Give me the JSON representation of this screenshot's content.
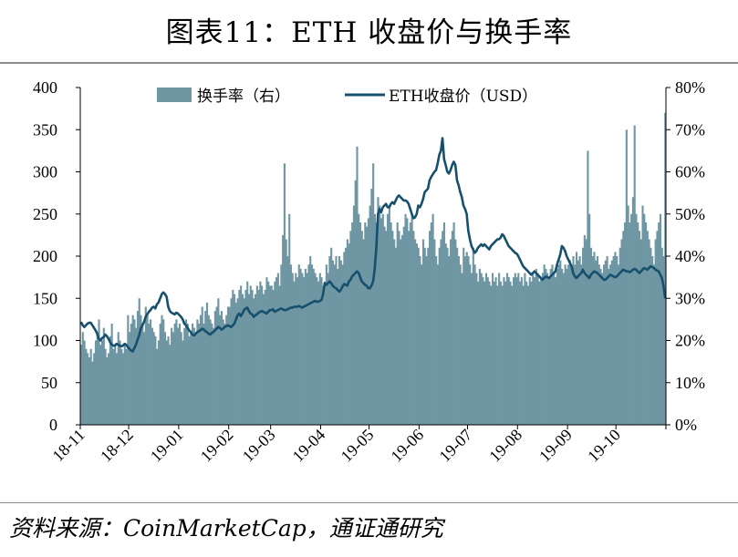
{
  "chart_data": {
    "type": "bar+line",
    "title": "图表11：ETH 收盘价与换手率",
    "source": "资料来源：CoinMarketCap，通证通研究",
    "x_categories": [
      "18-11",
      "18-12",
      "19-01",
      "19-02",
      "19-03",
      "19-04",
      "19-05",
      "19-06",
      "19-07",
      "19-08",
      "19-09",
      "19-10"
    ],
    "y_left": {
      "ticks": [
        "0",
        "50",
        "100",
        "150",
        "200",
        "250",
        "300",
        "350",
        "400"
      ],
      "range": [
        0,
        400
      ]
    },
    "y_right": {
      "ticks": [
        "0%",
        "10%",
        "20%",
        "30%",
        "40%",
        "50%",
        "60%",
        "70%",
        "80%"
      ],
      "range": [
        0,
        80
      ]
    },
    "legend_placement": "top",
    "series": [
      {
        "name": "换手率（右）",
        "type": "bar",
        "axis": "right",
        "color": "#6f96a3",
        "monthly_values": [
          [
            19,
            22,
            20,
            18,
            17,
            16,
            18,
            15,
            17,
            20,
            22,
            25,
            19,
            20,
            23,
            18,
            16,
            17,
            21,
            24,
            18,
            19,
            17,
            22,
            20,
            18,
            17,
            19,
            18,
            26
          ],
          [
            22,
            24,
            26,
            25,
            23,
            27,
            30,
            26,
            24,
            22,
            28,
            26,
            24,
            25,
            23,
            22,
            21,
            18,
            20,
            24,
            26,
            25,
            22,
            20,
            21,
            19,
            23,
            22,
            24,
            25,
            23
          ],
          [
            24,
            22,
            20,
            23,
            25,
            24,
            21,
            22,
            24,
            23,
            22,
            25,
            24,
            26,
            28,
            24,
            27,
            29,
            26,
            25,
            24,
            23,
            27,
            28,
            30,
            26,
            27,
            25,
            24,
            26,
            28
          ],
          [
            28,
            30,
            32,
            31,
            29,
            30,
            32,
            33,
            31,
            30,
            32,
            34,
            31,
            33,
            32,
            30,
            31,
            33,
            32,
            34,
            33,
            31,
            32,
            35,
            34,
            33
          ],
          [
            33,
            32,
            34,
            35,
            36,
            33,
            38,
            45,
            62,
            44,
            40,
            50,
            38,
            36,
            34,
            36,
            35,
            38,
            37,
            36,
            35,
            37,
            36,
            38,
            40,
            38,
            37,
            36,
            35,
            34,
            36
          ],
          [
            35,
            33,
            34,
            38,
            36,
            40,
            42,
            39,
            38,
            40,
            37,
            40,
            39,
            38,
            41,
            42,
            44,
            43,
            46,
            48,
            52,
            58,
            66,
            50,
            48,
            46,
            44,
            48,
            47,
            49
          ],
          [
            52,
            56,
            62,
            50,
            48,
            54,
            52,
            49,
            50,
            47,
            46,
            50,
            52,
            48,
            46,
            44,
            42,
            48,
            46,
            44,
            45,
            47,
            50,
            49,
            46,
            48,
            50,
            46,
            44,
            43,
            42
          ],
          [
            40,
            38,
            44,
            42,
            40,
            42,
            46,
            48,
            50,
            44,
            40,
            38,
            42,
            44,
            46,
            48,
            43,
            42,
            40,
            44,
            46,
            48,
            44,
            42,
            40,
            38,
            36,
            42,
            40,
            41
          ],
          [
            40,
            38,
            36,
            42,
            38,
            36,
            34,
            37,
            36,
            35,
            34,
            36,
            35,
            34,
            33,
            36,
            34,
            35,
            33,
            36,
            34,
            33,
            35,
            34,
            36,
            35,
            34,
            33,
            35,
            36,
            35
          ],
          [
            36,
            34,
            35,
            33,
            36,
            34,
            33,
            35,
            34,
            36,
            35,
            37,
            36,
            34,
            35,
            36,
            38,
            37,
            36,
            35,
            37,
            38,
            36,
            35,
            37,
            38,
            39,
            37,
            36,
            38,
            37
          ],
          [
            38,
            39,
            37,
            40,
            38,
            41,
            39,
            40,
            38,
            42,
            45,
            44,
            65,
            50,
            42,
            40,
            41,
            39,
            40,
            38,
            37,
            36,
            38,
            39,
            40,
            37,
            38,
            39,
            40,
            41
          ],
          [
            40,
            38,
            42,
            44,
            46,
            48,
            70,
            52,
            48,
            50,
            54,
            71,
            50,
            48,
            46,
            44,
            52,
            50,
            48,
            46,
            44,
            42,
            40,
            38,
            44,
            46,
            48,
            50,
            42,
            40,
            74
          ]
        ]
      },
      {
        "name": "ETH收盘价（USD）",
        "type": "line",
        "axis": "left",
        "color": "#16506d",
        "monthly_values": [
          [
            122,
            118,
            116,
            118,
            120,
            121,
            121,
            118,
            115,
            112,
            108,
            102,
            100,
            103,
            104,
            107,
            105,
            102,
            98,
            95,
            94,
            94,
            96,
            95,
            94,
            93,
            94,
            96,
            95,
            92
          ],
          [
            90,
            88,
            87,
            91,
            95,
            101,
            106,
            114,
            118,
            122,
            128,
            131,
            134,
            136,
            139,
            140,
            138,
            143,
            145,
            150,
            155,
            157,
            155,
            152,
            140,
            135,
            133,
            132,
            131,
            133,
            132
          ],
          [
            130,
            128,
            125,
            120,
            118,
            115,
            112,
            110,
            107,
            106,
            108,
            110,
            111,
            112,
            114,
            113,
            111,
            110,
            108,
            107,
            109,
            110,
            112,
            114,
            116,
            115,
            113,
            114,
            116,
            117,
            118
          ],
          [
            117,
            116,
            118,
            120,
            125,
            130,
            132,
            129,
            132,
            136,
            138,
            139,
            135,
            132,
            131,
            128,
            130,
            131,
            133,
            134,
            135,
            134,
            133,
            132,
            134,
            136
          ],
          [
            136,
            137,
            134,
            135,
            136,
            137,
            138,
            137,
            136,
            136,
            137,
            138,
            139,
            139,
            140,
            140,
            140,
            141,
            140,
            139,
            140,
            141,
            142,
            143,
            144,
            145,
            146,
            147,
            146,
            146,
            147
          ],
          [
            148,
            155,
            168,
            166,
            168,
            170,
            168,
            165,
            163,
            162,
            160,
            158,
            160,
            164,
            167,
            166,
            165,
            170,
            172,
            176,
            178,
            180,
            182,
            180,
            175,
            170,
            168,
            166,
            165,
            162
          ],
          [
            162,
            165,
            170,
            185,
            210,
            250,
            256,
            252,
            258,
            260,
            262,
            258,
            258,
            262,
            264,
            262,
            266,
            270,
            272,
            270,
            268,
            266,
            266,
            265,
            262,
            256,
            250,
            245,
            246,
            250,
            260
          ],
          [
            258,
            262,
            268,
            276,
            278,
            280,
            290,
            294,
            297,
            300,
            302,
            310,
            320,
            325,
            340,
            315,
            308,
            300,
            298,
            302,
            308,
            312,
            308,
            290,
            284,
            276,
            270,
            260,
            256,
            250
          ],
          [
            230,
            220,
            212,
            208,
            204,
            206,
            210,
            212,
            214,
            212,
            214,
            212,
            210,
            208,
            212,
            214,
            216,
            218,
            220,
            220,
            222,
            226,
            224,
            220,
            216,
            212,
            210,
            208,
            206,
            204,
            203
          ],
          [
            200,
            196,
            192,
            188,
            186,
            184,
            182,
            180,
            178,
            180,
            182,
            180,
            178,
            176,
            174,
            172,
            174,
            176,
            175,
            174,
            176,
            178,
            180,
            182,
            190,
            196,
            202,
            212,
            210,
            206,
            200
          ],
          [
            196,
            192,
            188,
            180,
            176,
            174,
            176,
            178,
            180,
            184,
            180,
            178,
            176,
            174,
            178,
            180,
            182,
            181,
            180,
            178,
            176,
            174,
            172,
            172,
            174,
            176,
            178,
            177,
            176,
            175
          ],
          [
            176,
            178,
            180,
            182,
            184,
            183,
            182,
            182,
            181,
            182,
            184,
            185,
            184,
            182,
            180,
            182,
            184,
            186,
            185,
            184,
            186,
            188,
            187,
            186,
            184,
            183,
            182,
            178,
            174,
            165,
            150
          ]
        ]
      }
    ]
  }
}
